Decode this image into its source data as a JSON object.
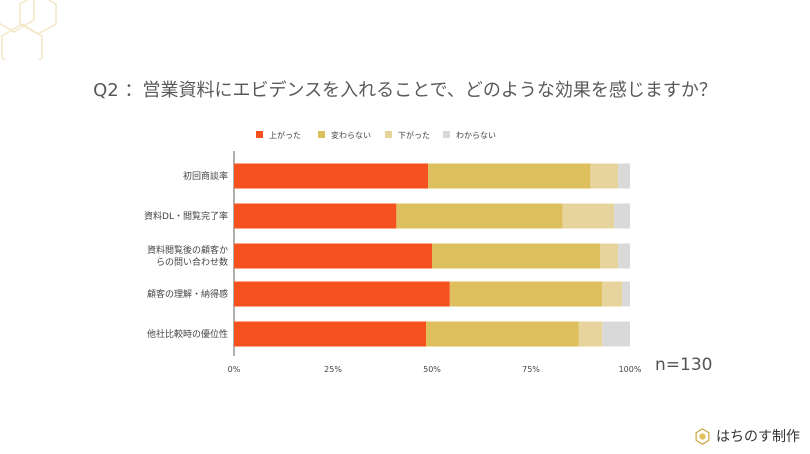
{
  "title": "Q2 ：営業資料にエビデンスを入れることで、どのような効果を感じますか？",
  "sample_size": "n=130",
  "brand": {
    "name": "はちのす制作",
    "icon": "honeycomb-logo-icon"
  },
  "colors": {
    "up": "#F4511E",
    "same": "#DDBF5E",
    "down": "#E7D49C",
    "unknown": "#D9D9D9",
    "hex": "#F3E7C7"
  },
  "chart_data": {
    "type": "bar",
    "orientation": "horizontal",
    "stacked": "percent",
    "categories": [
      "初回商談率",
      "資料DL・閲覧完了率",
      "資料閲覧後の顧客からの問い合わせ数",
      "顧客の理解・納得感",
      "他社比較時の優位性"
    ],
    "category_lines": [
      [
        "初回商談率"
      ],
      [
        "資料DL・閲覧完了率"
      ],
      [
        "資料閲覧後の顧客か",
        "らの問い合わせ数"
      ],
      [
        "顧客の理解・納得感"
      ],
      [
        "他社比較時の優位性"
      ]
    ],
    "series": [
      {
        "name": "上がった",
        "key": "up",
        "values": [
          49,
          41,
          50,
          54.5,
          48.5
        ]
      },
      {
        "name": "変わらない",
        "key": "same",
        "values": [
          41,
          42,
          42.5,
          38.5,
          38.5
        ]
      },
      {
        "name": "下がった",
        "key": "down",
        "values": [
          7,
          13,
          4.5,
          5,
          6
        ]
      },
      {
        "name": "わからない",
        "key": "unknown",
        "values": [
          3,
          4,
          3,
          2,
          7
        ]
      }
    ],
    "xlim": [
      0,
      100
    ],
    "x_ticks": [
      "0%",
      "25%",
      "50%",
      "75%",
      "100%"
    ],
    "x_tick_values": [
      0,
      25,
      50,
      75,
      100
    ],
    "legend_position": "top"
  }
}
